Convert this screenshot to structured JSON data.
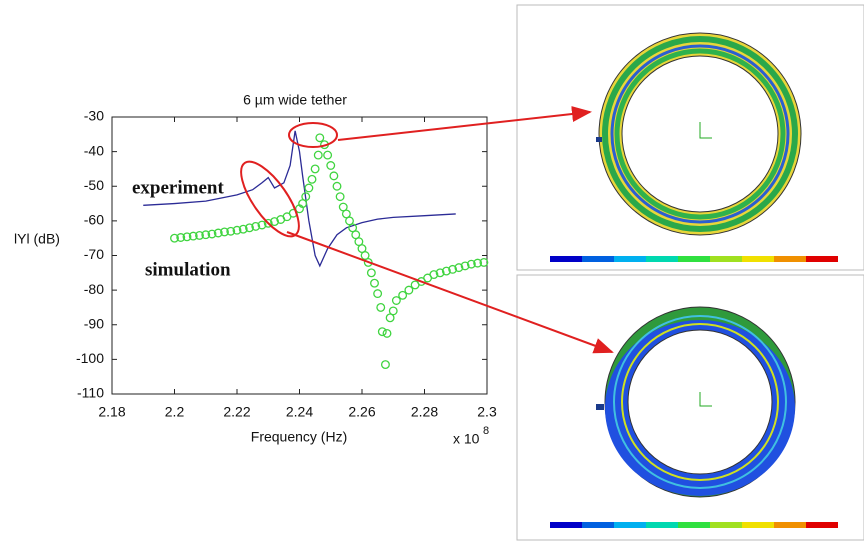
{
  "chart_data": {
    "type": "line",
    "title": "6 µm wide tether",
    "x_label": "Frequency (Hz)",
    "y_label": "lYl (dB)",
    "x_multiplier": "x 10",
    "x_exponent": "8",
    "xlim": [
      2.18,
      2.3
    ],
    "xticks": [
      2.18,
      2.2,
      2.22,
      2.24,
      2.26,
      2.28,
      2.3
    ],
    "ylim": [
      -110,
      -30
    ],
    "yticks": [
      -110,
      -100,
      -90,
      -80,
      -70,
      -60,
      -50,
      -40,
      -30
    ],
    "grid": false,
    "series": [
      {
        "name": "experiment",
        "kind": "line",
        "color": "#2b2b96",
        "x": [
          2.19,
          2.2,
          2.21,
          2.22,
          2.225,
          2.228,
          2.23,
          2.232,
          2.235,
          2.237,
          2.2386,
          2.24,
          2.241,
          2.243,
          2.245,
          2.2465,
          2.249,
          2.252,
          2.255,
          2.26,
          2.265,
          2.27,
          2.28,
          2.29
        ],
        "values": [
          -55.5,
          -55,
          -54.3,
          -52.5,
          -51,
          -49,
          -47.5,
          -50.5,
          -49,
          -44,
          -34,
          -40,
          -47,
          -60,
          -70,
          -73,
          -68,
          -64,
          -62,
          -60.5,
          -59.5,
          -59,
          -58.5,
          -58
        ]
      },
      {
        "name": "simulation",
        "kind": "scatter",
        "color": "#3fd43f",
        "x": [
          2.2,
          2.202,
          2.204,
          2.206,
          2.208,
          2.21,
          2.212,
          2.214,
          2.216,
          2.218,
          2.22,
          2.222,
          2.224,
          2.226,
          2.228,
          2.23,
          2.232,
          2.234,
          2.236,
          2.238,
          2.24,
          2.241,
          2.242,
          2.243,
          2.244,
          2.245,
          2.246,
          2.2465,
          2.248,
          2.249,
          2.25,
          2.251,
          2.252,
          2.253,
          2.254,
          2.255,
          2.256,
          2.257,
          2.258,
          2.259,
          2.26,
          2.261,
          2.262,
          2.263,
          2.264,
          2.265,
          2.266,
          2.2665,
          2.2675,
          2.268,
          2.269,
          2.27,
          2.271,
          2.273,
          2.275,
          2.277,
          2.279,
          2.281,
          2.283,
          2.285,
          2.287,
          2.289,
          2.291,
          2.293,
          2.295,
          2.297,
          2.299
        ],
        "values": [
          -65,
          -64.8,
          -64.6,
          -64.4,
          -64.2,
          -64,
          -63.8,
          -63.5,
          -63.2,
          -63,
          -62.7,
          -62.4,
          -62,
          -61.6,
          -61.2,
          -60.7,
          -60.2,
          -59.6,
          -58.8,
          -57.8,
          -56.5,
          -55,
          -53,
          -50.5,
          -48,
          -45,
          -41,
          -36,
          -38,
          -41,
          -44,
          -47,
          -50,
          -53,
          -56,
          -58,
          -60,
          -62,
          -64,
          -66,
          -68,
          -70,
          -72,
          -75,
          -78,
          -81,
          -85,
          -92,
          -101.5,
          -92.5,
          -88,
          -86,
          -83,
          -81.5,
          -80,
          -78.5,
          -77.5,
          -76.5,
          -75.5,
          -75,
          -74.5,
          -74,
          -73.5,
          -73,
          -72.5,
          -72.2,
          -72
        ]
      }
    ]
  }
}
